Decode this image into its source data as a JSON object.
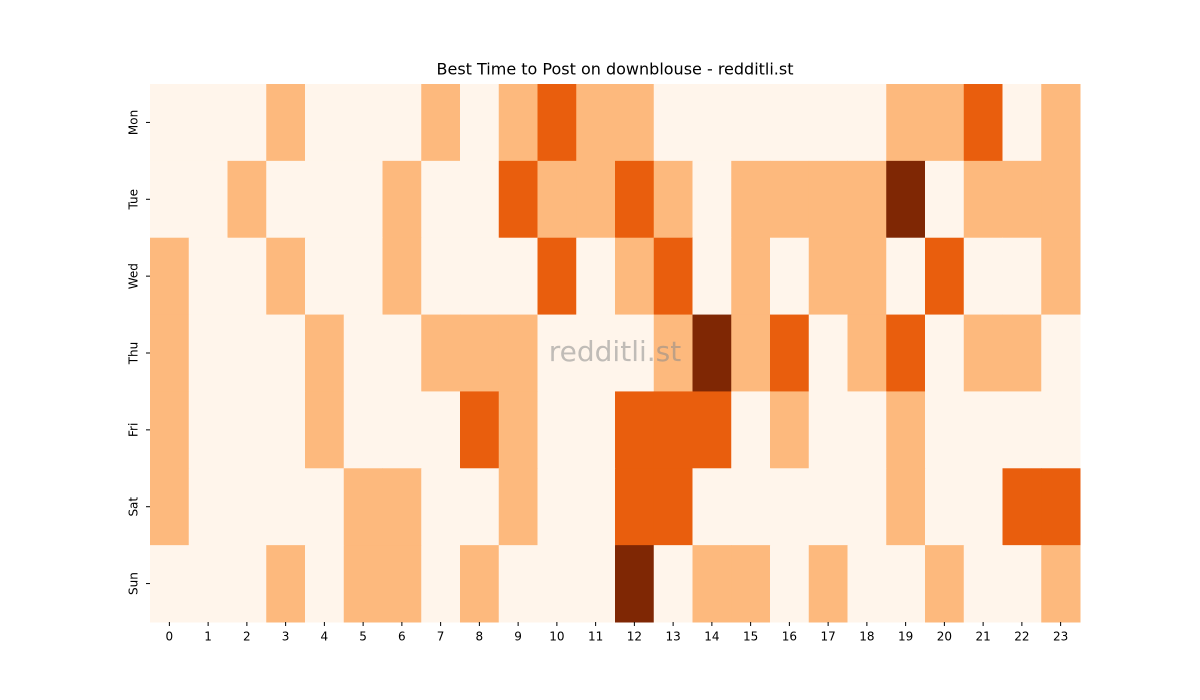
{
  "chart_data": {
    "type": "heatmap",
    "title": "Best Time to Post on downblouse - redditli.st",
    "watermark": "redditli.st",
    "x_categories": [
      0,
      1,
      2,
      3,
      4,
      5,
      6,
      7,
      8,
      9,
      10,
      11,
      12,
      13,
      14,
      15,
      16,
      17,
      18,
      19,
      20,
      21,
      22,
      23
    ],
    "y_categories": [
      "Mon",
      "Tue",
      "Wed",
      "Thu",
      "Fri",
      "Sat",
      "Sun"
    ],
    "values": [
      [
        0,
        0,
        0,
        1,
        0,
        0,
        0,
        1,
        0,
        1,
        2,
        1,
        1,
        0,
        0,
        0,
        0,
        0,
        0,
        1,
        1,
        2,
        0,
        1
      ],
      [
        0,
        0,
        1,
        0,
        0,
        0,
        1,
        0,
        0,
        2,
        1,
        1,
        2,
        1,
        0,
        1,
        1,
        1,
        1,
        3,
        0,
        1,
        1,
        1
      ],
      [
        1,
        0,
        0,
        1,
        0,
        0,
        1,
        0,
        0,
        0,
        2,
        0,
        1,
        2,
        0,
        1,
        0,
        1,
        1,
        0,
        2,
        0,
        0,
        1
      ],
      [
        1,
        0,
        0,
        0,
        1,
        0,
        0,
        1,
        1,
        1,
        0,
        0,
        0,
        1,
        3,
        1,
        2,
        0,
        1,
        2,
        0,
        1,
        1,
        0
      ],
      [
        1,
        0,
        0,
        0,
        1,
        0,
        0,
        0,
        2,
        1,
        0,
        0,
        2,
        2,
        2,
        0,
        1,
        0,
        0,
        1,
        0,
        0,
        0,
        0
      ],
      [
        1,
        0,
        0,
        0,
        0,
        1,
        1,
        0,
        0,
        1,
        0,
        0,
        2,
        2,
        0,
        0,
        0,
        0,
        0,
        1,
        0,
        0,
        2,
        2
      ],
      [
        0,
        0,
        0,
        1,
        0,
        1,
        1,
        0,
        1,
        0,
        0,
        0,
        3,
        0,
        1,
        1,
        0,
        1,
        0,
        0,
        1,
        0,
        0,
        1
      ]
    ],
    "vlim": [
      0,
      3
    ],
    "colors": [
      "#fff5eb",
      "#fdb97d",
      "#e95e0d",
      "#7f2704"
    ]
  }
}
